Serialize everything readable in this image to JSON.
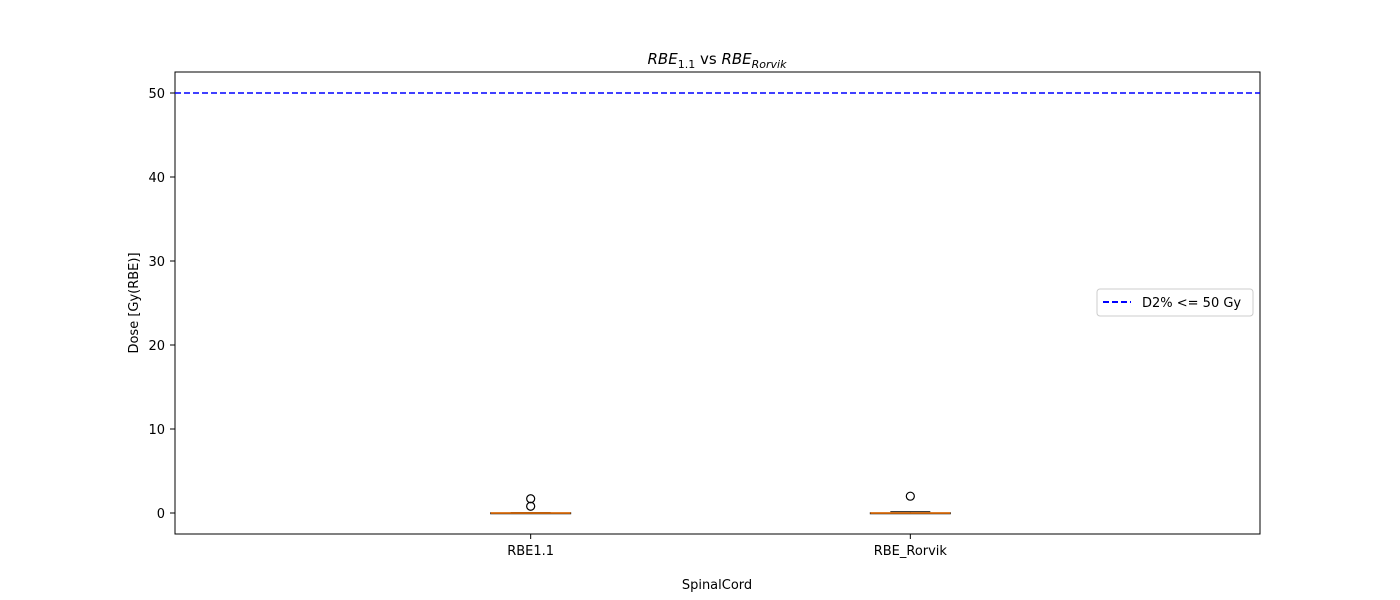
{
  "chart_data": {
    "type": "box",
    "title_base_1": "RBE",
    "title_sub_1": "1.1",
    "title_mid": " vs ",
    "title_base_2": "RBE",
    "title_sub_2": "Rorvik",
    "ylabel": "Dose [Gy(RBE)]",
    "xlabel": "SpinalCord",
    "xlabel_color": "#0000ff",
    "ylim": [
      -2.5,
      52.5
    ],
    "yticks": [
      0,
      10,
      20,
      30,
      40,
      50
    ],
    "grid": false,
    "categories": [
      "RBE1.1",
      "RBE_Rorvik"
    ],
    "boxes": [
      {
        "label": "RBE1.1",
        "whisker_low": 0.0,
        "q1": 0.0,
        "median": 0.0,
        "q3": 0.03,
        "whisker_high": 0.06,
        "outliers": [
          0.8,
          1.7
        ]
      },
      {
        "label": "RBE_Rorvik",
        "whisker_low": 0.0,
        "q1": 0.0,
        "median": 0.0,
        "q3": 0.03,
        "whisker_high": 0.15,
        "outliers": [
          2.0
        ]
      }
    ],
    "reference_line": {
      "y": 50,
      "label": "D2% <= 50 Gy",
      "color": "#0000ff",
      "style": "dashed"
    },
    "legend_position": "center-right",
    "colors": {
      "box": "#000000",
      "median": "#ff7f0e",
      "outlier": "#000000"
    }
  }
}
